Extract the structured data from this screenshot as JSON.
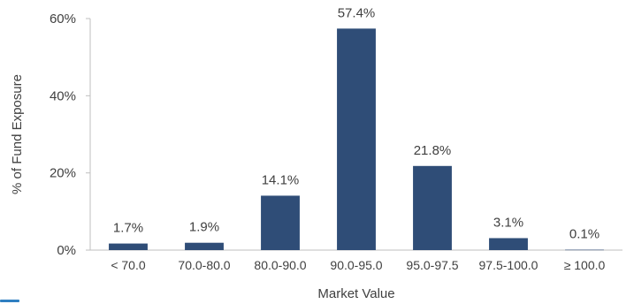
{
  "chart_data": {
    "type": "bar",
    "title": "",
    "xlabel": "Market Value",
    "ylabel": "% of Fund Exposure",
    "ylim": [
      0,
      60
    ],
    "yticks": [
      0,
      20,
      40,
      60
    ],
    "ytick_labels": [
      "0%",
      "20%",
      "40%",
      "60%"
    ],
    "grid": false,
    "legend": "none",
    "bar_color": "#2f4d77",
    "categories": [
      "< 70.0",
      "70.0-80.0",
      "80.0-90.0",
      "90.0-95.0",
      "95.0-97.5",
      "97.5-100.0",
      "≥ 100.0"
    ],
    "values": [
      1.7,
      1.9,
      14.1,
      57.4,
      21.8,
      3.1,
      0.1
    ],
    "data_labels": [
      "1.7%",
      "1.9%",
      "14.1%",
      "57.4%",
      "21.8%",
      "3.1%",
      "0.1%"
    ]
  }
}
